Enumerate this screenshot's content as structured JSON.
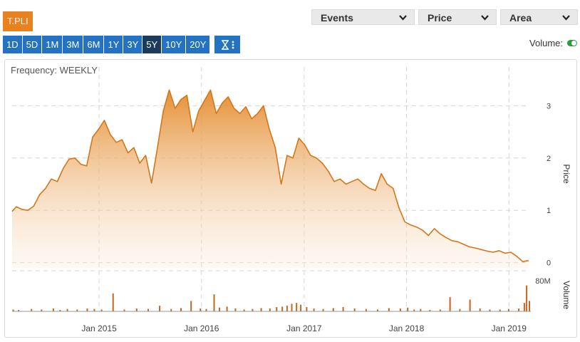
{
  "ticker": "T.PLI",
  "dropdowns": {
    "events": "Events",
    "price": "Price",
    "area": "Area"
  },
  "ranges": [
    "1D",
    "5D",
    "1M",
    "3M",
    "6M",
    "1Y",
    "3Y",
    "5Y",
    "10Y",
    "20Y"
  ],
  "active_range": "5Y",
  "volume_toggle": {
    "label": "Volume:",
    "on": true
  },
  "frequency": "Frequency: WEEKLY",
  "colors": {
    "accent": "#e8811e",
    "button": "#2372c4",
    "button_active": "#1c3a5a",
    "line": "#d2771a",
    "toggle": "#2a9d3a"
  },
  "chart_data": [
    {
      "type": "area",
      "ylabel": "Price",
      "y_ticks": [
        "0",
        "1",
        "2",
        "3"
      ],
      "ylim": [
        -0.1,
        3.4
      ],
      "x_ticks": [
        "Jan 2015",
        "Jan 2016",
        "Jan 2017",
        "Jan 2018",
        "Jan 2019"
      ],
      "xlim": [
        "2014-02-25",
        "2019-03-20"
      ],
      "x": [
        "2014-02-25",
        "2014-03-12",
        "2014-04-01",
        "2014-04-22",
        "2014-05-13",
        "2014-06-03",
        "2014-06-24",
        "2014-07-15",
        "2014-08-05",
        "2014-08-26",
        "2014-09-16",
        "2014-10-07",
        "2014-10-28",
        "2014-11-18",
        "2014-12-09",
        "2014-12-30",
        "2015-01-20",
        "2015-02-10",
        "2015-03-03",
        "2015-03-24",
        "2015-04-14",
        "2015-05-05",
        "2015-05-26",
        "2015-06-16",
        "2015-07-07",
        "2015-07-28",
        "2015-08-18",
        "2015-09-08",
        "2015-09-29",
        "2015-10-20",
        "2015-11-10",
        "2015-12-01",
        "2015-12-22",
        "2016-01-12",
        "2016-02-02",
        "2016-02-23",
        "2016-03-15",
        "2016-04-05",
        "2016-04-26",
        "2016-05-17",
        "2016-06-07",
        "2016-06-28",
        "2016-07-19",
        "2016-08-09",
        "2016-08-30",
        "2016-09-20",
        "2016-10-11",
        "2016-11-01",
        "2016-11-22",
        "2016-12-13",
        "2017-01-03",
        "2017-01-24",
        "2017-02-14",
        "2017-03-07",
        "2017-03-28",
        "2017-04-18",
        "2017-05-09",
        "2017-05-30",
        "2017-06-20",
        "2017-07-11",
        "2017-08-01",
        "2017-08-22",
        "2017-09-12",
        "2017-10-03",
        "2017-10-24",
        "2017-11-14",
        "2017-12-05",
        "2017-12-26",
        "2018-01-16",
        "2018-02-06",
        "2018-02-27",
        "2018-03-20",
        "2018-04-10",
        "2018-05-01",
        "2018-05-22",
        "2018-06-12",
        "2018-07-03",
        "2018-07-24",
        "2018-08-14",
        "2018-09-04",
        "2018-09-25",
        "2018-10-16",
        "2018-11-06",
        "2018-11-27",
        "2018-12-18",
        "2019-01-08",
        "2019-01-29",
        "2019-02-19",
        "2019-03-12"
      ],
      "series": [
        {
          "values": [
            0.98,
            1.07,
            1.02,
            1.0,
            1.08,
            1.3,
            1.42,
            1.6,
            1.55,
            1.8,
            1.98,
            2.0,
            1.88,
            1.85,
            2.4,
            2.55,
            2.72,
            2.45,
            2.3,
            2.35,
            2.1,
            2.2,
            1.9,
            2.05,
            1.52,
            2.2,
            2.9,
            3.3,
            2.95,
            3.12,
            3.2,
            2.5,
            2.9,
            3.1,
            3.3,
            2.85,
            3.05,
            3.17,
            2.95,
            2.85,
            2.98,
            2.75,
            2.85,
            3.0,
            2.55,
            2.2,
            1.5,
            2.05,
            2.0,
            2.38,
            2.25,
            2.05,
            2.0,
            1.9,
            1.75,
            1.55,
            1.6,
            1.5,
            1.55,
            1.6,
            1.5,
            1.42,
            1.38,
            1.7,
            1.5,
            1.42,
            1.05,
            0.78,
            0.72,
            0.68,
            0.62,
            0.52,
            0.65,
            0.55,
            0.48,
            0.42,
            0.4,
            0.35,
            0.3,
            0.28,
            0.25,
            0.22,
            0.2,
            0.23,
            0.18,
            0.2,
            0.12,
            0.02,
            0.04
          ]
        }
      ]
    },
    {
      "type": "bar",
      "ylabel": "Volume",
      "y_ticks": [
        "80M"
      ],
      "ylim": [
        0,
        80
      ],
      "x": [
        "2014-03-01",
        "2014-03-20",
        "2014-05-05",
        "2014-06-10",
        "2014-07-22",
        "2014-08-15",
        "2014-09-10",
        "2014-10-15",
        "2014-11-20",
        "2014-12-15",
        "2015-01-10",
        "2015-02-20",
        "2015-04-01",
        "2015-05-15",
        "2015-06-25",
        "2015-08-05",
        "2015-09-15",
        "2015-10-20",
        "2015-11-25",
        "2015-12-28",
        "2016-01-18",
        "2016-02-15",
        "2016-03-05",
        "2016-04-01",
        "2016-05-01",
        "2016-06-01",
        "2016-07-01",
        "2016-08-01",
        "2016-09-01",
        "2016-09-25",
        "2016-10-15",
        "2016-11-01",
        "2016-11-18",
        "2016-12-05",
        "2016-12-20",
        "2017-01-10",
        "2017-02-05",
        "2017-03-10",
        "2017-04-15",
        "2017-05-20",
        "2017-06-30",
        "2017-08-10",
        "2017-09-20",
        "2017-10-30",
        "2017-12-10",
        "2018-01-05",
        "2018-01-28",
        "2018-02-20",
        "2018-03-25",
        "2018-05-01",
        "2018-06-05",
        "2018-07-10",
        "2018-08-15",
        "2018-09-20",
        "2018-10-25",
        "2018-11-30",
        "2018-12-31",
        "2019-02-05",
        "2019-02-25",
        "2019-03-05",
        "2019-03-15"
      ],
      "values": [
        4,
        3,
        5,
        4,
        6,
        3,
        5,
        4,
        6,
        5,
        4,
        38,
        4,
        6,
        5,
        12,
        5,
        7,
        22,
        6,
        5,
        36,
        8,
        10,
        6,
        4,
        5,
        7,
        6,
        9,
        10,
        12,
        16,
        18,
        14,
        9,
        6,
        5,
        7,
        9,
        6,
        5,
        4,
        7,
        6,
        8,
        4,
        5,
        3,
        4,
        30,
        5,
        25,
        6,
        4,
        4,
        5,
        6,
        18,
        55,
        22
      ]
    }
  ]
}
